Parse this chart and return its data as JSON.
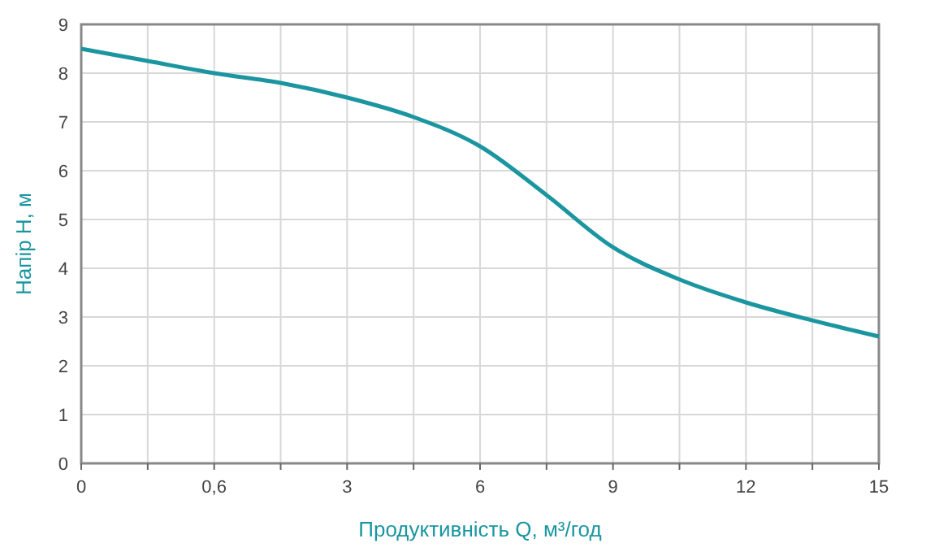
{
  "chart_data": {
    "type": "line",
    "xlabel": "Продуктивність Q, м³/год",
    "ylabel": "Напір H, м",
    "categories": [
      "0",
      null,
      "0,6",
      null,
      "3",
      null,
      "6",
      null,
      "9",
      null,
      "12",
      null,
      "15"
    ],
    "series": [
      {
        "color": "#1b96a0",
        "values": [
          8.5,
          8.25,
          8.0,
          7.8,
          7.5,
          7.1,
          6.5,
          5.5,
          4.43,
          3.77,
          3.3,
          2.93,
          2.6
        ]
      }
    ],
    "ylim": [
      0,
      9
    ],
    "yticks": [
      0,
      1,
      2,
      3,
      4,
      5,
      6,
      7,
      8,
      9
    ],
    "grid": true,
    "marker": "none",
    "line_style": "solid"
  }
}
